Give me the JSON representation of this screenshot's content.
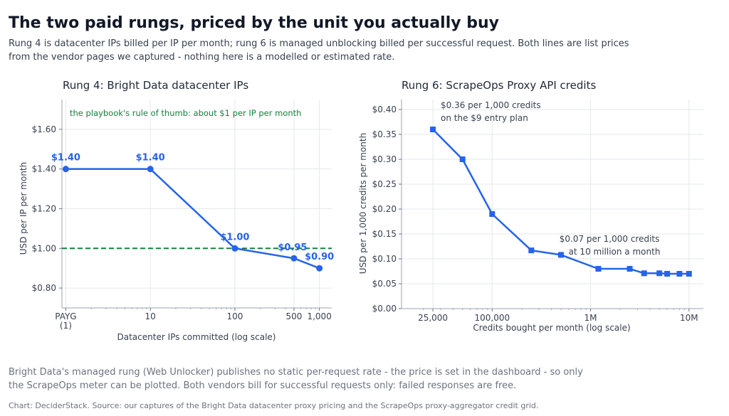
{
  "header": {
    "title": "The two paid rungs, priced by the unit you actually buy",
    "subtitle": "Rung 4 is datacenter IPs billed per IP per month; rung 6 is managed unblocking billed per successful request. Both lines are list prices from the vendor pages we captured - nothing here is a modelled or estimated rate."
  },
  "footer": {
    "note": "Bright Data's managed rung (Web Unlocker) publishes no static per-request rate - the price is set in the dashboard - so only the ScrapeOps meter can be plotted. Both vendors bill for successful requests only: failed responses are free.",
    "source": "Chart: DeciderStack. Source: our captures of the Bright Data datacenter proxy pricing and the ScrapeOps proxy-aggregator credit grid."
  },
  "chart_data": [
    {
      "type": "line",
      "title": "Rung 4: Bright Data datacenter IPs",
      "xlabel": "Datacenter IPs committed (log scale)",
      "ylabel": "USD per IP per month",
      "x_scale": "log",
      "xlim": [
        0.9,
        1400
      ],
      "ylim": [
        0.7,
        1.75
      ],
      "xticks": [
        {
          "value": 1,
          "label": [
            "PAYG",
            "(1)"
          ]
        },
        {
          "value": 10,
          "label": [
            "10"
          ]
        },
        {
          "value": 100,
          "label": [
            "100"
          ]
        },
        {
          "value": 500,
          "label": [
            "500"
          ]
        },
        {
          "value": 1000,
          "label": [
            "1,000"
          ]
        }
      ],
      "yticks": [
        {
          "value": 0.8,
          "label": "$0.80"
        },
        {
          "value": 1.0,
          "label": "$1.00"
        },
        {
          "value": 1.2,
          "label": "$1.20"
        },
        {
          "value": 1.4,
          "label": "$1.40"
        },
        {
          "value": 1.6,
          "label": "$1.60"
        }
      ],
      "series": [
        {
          "x": [
            1,
            10,
            100,
            500,
            1000
          ],
          "y": [
            1.4,
            1.4,
            1.0,
            0.95,
            0.9
          ],
          "marker": "circle",
          "color": "#2563eb"
        }
      ],
      "data_labels": [
        "$1.40",
        "$1.40",
        "$1.00",
        "$0.95",
        "$0.90"
      ],
      "reference_line": {
        "y": 1.0,
        "color": "#15803d",
        "style": "dashed"
      },
      "annotations": [
        "the playbook's rule of thumb: about $1 per IP per month"
      ],
      "grid": true
    },
    {
      "type": "line",
      "title": "Rung 6: ScrapeOps Proxy API credits",
      "xlabel": "Credits bought per month (log scale)",
      "ylabel": "USD per 1,000 credits per month",
      "x_scale": "log",
      "xlim": [
        12000,
        14000000
      ],
      "ylim": [
        0,
        0.42
      ],
      "xticks": [
        {
          "value": 25000,
          "label": "25,000"
        },
        {
          "value": 100000,
          "label": "100,000"
        },
        {
          "value": 1000000,
          "label": "1M"
        },
        {
          "value": 10000000,
          "label": "10M"
        }
      ],
      "yticks": [
        {
          "value": 0.0,
          "label": "$0.00"
        },
        {
          "value": 0.05,
          "label": "$0.05"
        },
        {
          "value": 0.1,
          "label": "$0.10"
        },
        {
          "value": 0.15,
          "label": "$0.15"
        },
        {
          "value": 0.2,
          "label": "$0.20"
        },
        {
          "value": 0.25,
          "label": "$0.25"
        },
        {
          "value": 0.3,
          "label": "$0.30"
        },
        {
          "value": 0.35,
          "label": "$0.35"
        },
        {
          "value": 0.4,
          "label": "$0.40"
        }
      ],
      "series": [
        {
          "x": [
            25000,
            50000,
            100000,
            250000,
            500000,
            1200000,
            2500000,
            3500000,
            5000000,
            6000000,
            8000000,
            10000000
          ],
          "y": [
            0.36,
            0.3,
            0.19,
            0.117,
            0.108,
            0.08,
            0.08,
            0.071,
            0.071,
            0.07,
            0.07,
            0.07
          ],
          "marker": "square",
          "color": "#2563eb"
        }
      ],
      "annotations": [
        [
          "$0.36 per 1,000 credits",
          "on the $9 entry plan"
        ],
        [
          "$0.07 per 1,000 credits",
          "at 10 million a month"
        ]
      ],
      "grid": true
    }
  ]
}
